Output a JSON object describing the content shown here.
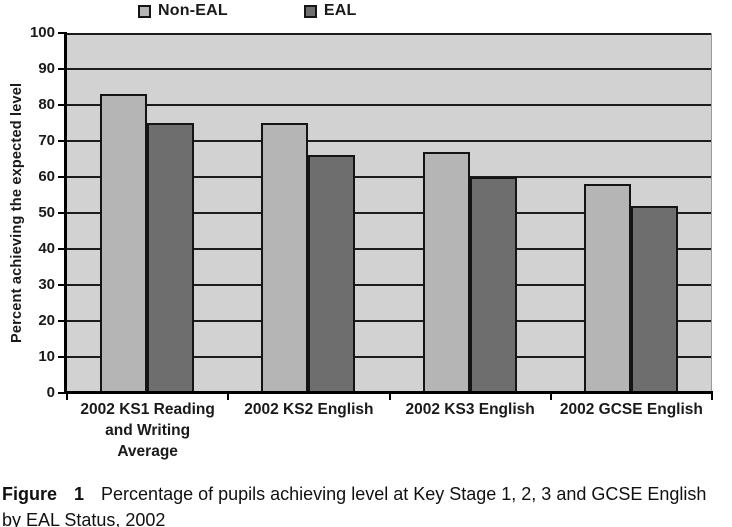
{
  "legend": {
    "items": [
      {
        "label": "Non-EAL",
        "color": "#b5b5b5",
        "pattern": "solid"
      },
      {
        "label": "EAL",
        "color": "#6e6e6e",
        "pattern": "crosshatch"
      }
    ]
  },
  "chart_data": {
    "type": "bar",
    "title": "",
    "xlabel": "",
    "ylabel": "Percent achieving the expected level",
    "ylim": [
      0,
      100
    ],
    "yticks": [
      0,
      10,
      20,
      30,
      40,
      50,
      60,
      70,
      80,
      90,
      100
    ],
    "grid": true,
    "gridline_interval": 10,
    "legend_position": "top",
    "plot_background": "#d2d2d2",
    "categories": [
      "2002 KS1 Reading and Writing Average",
      "2002 KS2 English",
      "2002 KS3 English",
      "2002 GCSE English"
    ],
    "category_lines": [
      [
        "2002 KS1 Reading",
        "and Writing",
        "Average"
      ],
      [
        "2002 KS2 English"
      ],
      [
        "2002 KS3 English"
      ],
      [
        "2002 GCSE English"
      ]
    ],
    "series": [
      {
        "name": "Non-EAL",
        "color": "#b5b5b5",
        "values": [
          83,
          75,
          67,
          58
        ]
      },
      {
        "name": "EAL",
        "color": "#6e6e6e",
        "values": [
          75,
          66,
          60,
          52
        ]
      }
    ]
  },
  "caption": {
    "figure_word": "Figure",
    "figure_number": "1",
    "text": "Percentage of pupils achieving level at Key Stage 1, 2, 3 and GCSE English by EAL Status, 2002"
  },
  "colors": {
    "page_background": "#ffffff",
    "gridline": "#1c1c1c",
    "axis": "#000000",
    "text": "#1a1a1a"
  }
}
